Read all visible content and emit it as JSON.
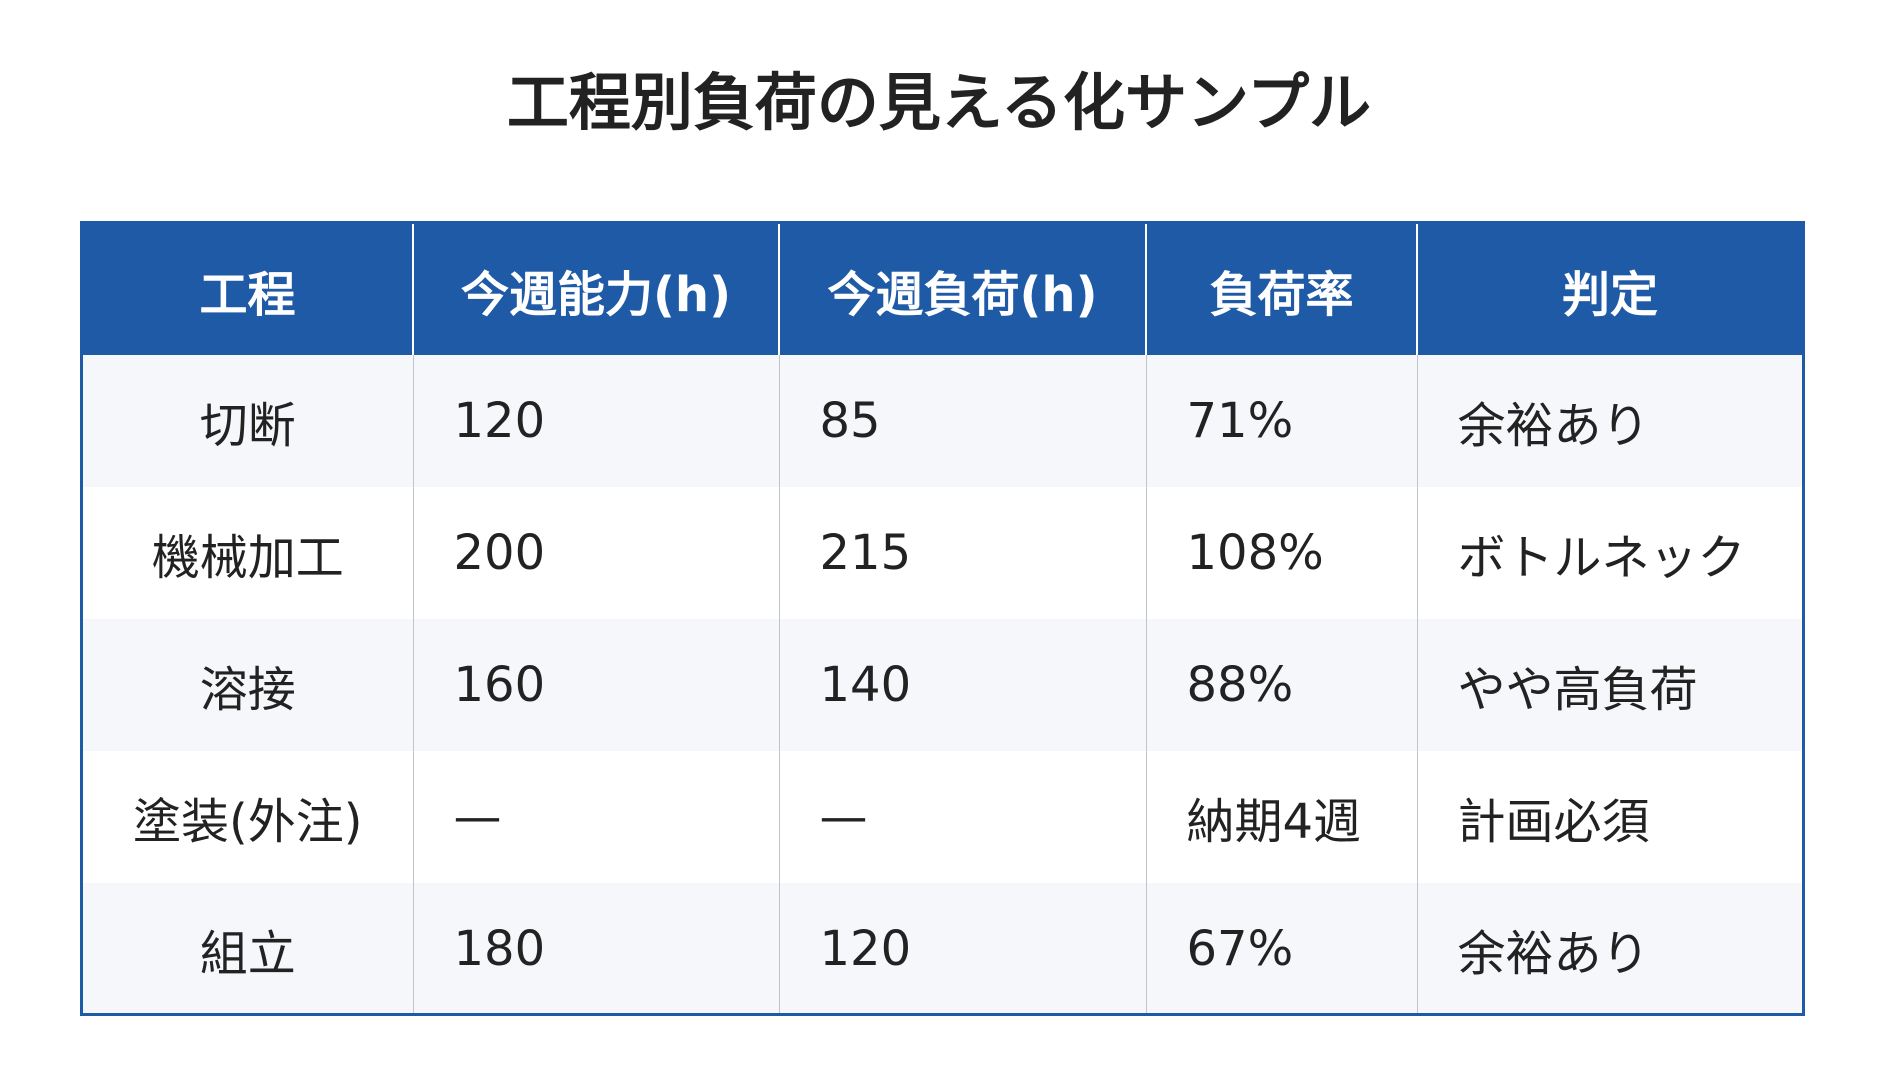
{
  "title": "工程別負荷の見える化サンプル",
  "colors": {
    "header_bg": "#1f5aa6",
    "header_text": "#ffffff",
    "row_alt_bg": "#f5f7fa",
    "row_bg": "#ffffff"
  },
  "chart_data": {
    "type": "table",
    "title": "工程別負荷の見える化サンプル",
    "columns": [
      "工程",
      "今週能力(h)",
      "今週負荷(h)",
      "負荷率",
      "判定"
    ],
    "rows": [
      [
        "切断",
        "120",
        "85",
        "71%",
        "余裕あり"
      ],
      [
        "機械加工",
        "200",
        "215",
        "108%",
        "ボトルネック"
      ],
      [
        "溶接",
        "160",
        "140",
        "88%",
        "やや高負荷"
      ],
      [
        "塗装(外注)",
        "—",
        "—",
        "納期4週",
        "計画必須"
      ],
      [
        "組立",
        "180",
        "120",
        "67%",
        "余裕あり"
      ]
    ]
  }
}
